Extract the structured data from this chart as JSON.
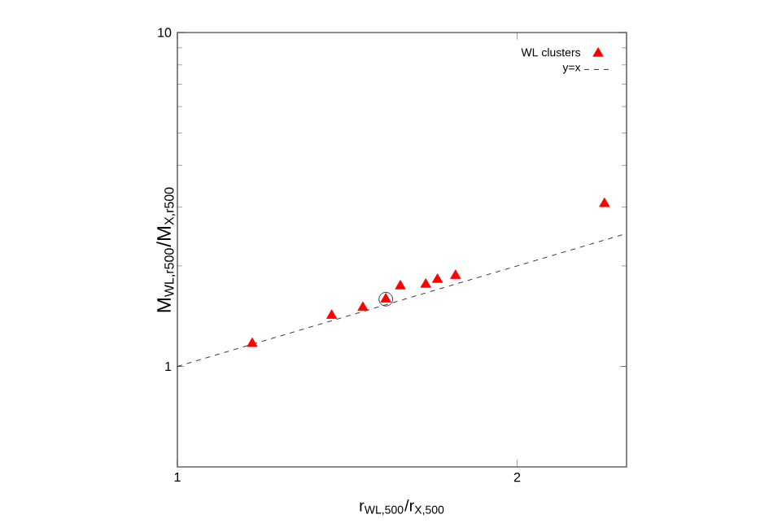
{
  "chart_data": {
    "type": "scatter",
    "xlabel": "r$_{WL,500}$/r$_{X,500}$",
    "ylabel": "M$_{WL,r500}$/M$_{X,r500}$",
    "log": "xy",
    "xlim": [
      1,
      2.5
    ],
    "ylim": [
      0.5,
      10
    ],
    "xticks": [
      1,
      2
    ],
    "yticks": [
      1,
      10
    ],
    "legend": "top right",
    "series": [
      {
        "name": "WL clusters",
        "marker": "triangle",
        "color": "#ff0000",
        "x": [
          1.165,
          1.37,
          1.46,
          1.53,
          1.576,
          1.66,
          1.7,
          1.764,
          2.39
        ],
        "values": [
          1.17,
          1.42,
          1.5,
          1.59,
          1.74,
          1.76,
          1.82,
          1.87,
          3.07
        ]
      },
      {
        "type": "scatter",
        "marker": "circle",
        "color": "#000000",
        "x": [
          1.53
        ],
        "values": [
          1.59
        ]
      },
      {
        "name": "y=x",
        "type": "line",
        "marker": "none",
        "line_style": "dashed",
        "color": "#000000",
        "x": [
          1,
          2.5
        ],
        "values": [
          1,
          2.5
        ]
      }
    ]
  }
}
